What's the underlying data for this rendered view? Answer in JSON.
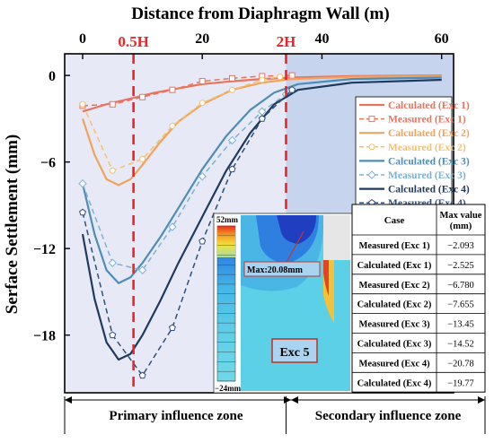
{
  "chart_data": {
    "type": "line",
    "xlabel": "Distance from Diaphragm Wall (m)",
    "ylabel": "Serface Settlement (mm)",
    "xlim": [
      -3,
      62
    ],
    "ylim": [
      -22,
      1.5
    ],
    "xticks": [
      0,
      20,
      40,
      60
    ],
    "yticks": [
      0,
      -6,
      -12,
      -18
    ],
    "grid": false,
    "legend_position": "top-right",
    "markers": [
      {
        "label": "0.5H",
        "x": 8.5,
        "color": "#e8262a"
      },
      {
        "label": "2H",
        "x": 34,
        "color": "#e8262a"
      }
    ],
    "shaded_region": {
      "from_x": 34,
      "to_x": 62,
      "color": "#c6d4ee"
    },
    "zones": {
      "primary": "Primary influence zone",
      "secondary": "Secondary influence zone"
    },
    "series": [
      {
        "name": "Calculated (Exc 1)",
        "color": "#e8735f",
        "style": "solid",
        "marker": "none",
        "points": [
          [
            0,
            -2.5
          ],
          [
            4,
            -2.0
          ],
          [
            8,
            -1.6
          ],
          [
            12,
            -1.2
          ],
          [
            16,
            -0.9
          ],
          [
            20,
            -0.6
          ],
          [
            25,
            -0.4
          ],
          [
            30,
            -0.25
          ],
          [
            35,
            -0.15
          ],
          [
            45,
            -0.05
          ],
          [
            60,
            0
          ]
        ]
      },
      {
        "name": "Measured (Exc 1)",
        "color": "#e8735f",
        "style": "dashed",
        "marker": "square",
        "points": [
          [
            0,
            -2.1
          ],
          [
            5,
            -2.0
          ],
          [
            10,
            -1.5
          ],
          [
            15,
            -1.0
          ],
          [
            20,
            -0.4
          ],
          [
            25,
            -0.2
          ],
          [
            30,
            -0.05
          ],
          [
            35,
            0
          ]
        ]
      },
      {
        "name": "Calculated (Exc 2)",
        "color": "#f2a25c",
        "style": "solid",
        "marker": "none",
        "points": [
          [
            0,
            -3.0
          ],
          [
            2,
            -5.5
          ],
          [
            4,
            -7.2
          ],
          [
            6,
            -7.6
          ],
          [
            8,
            -7.2
          ],
          [
            10,
            -6.2
          ],
          [
            13,
            -4.6
          ],
          [
            16,
            -3.2
          ],
          [
            20,
            -2.0
          ],
          [
            25,
            -1.0
          ],
          [
            30,
            -0.5
          ],
          [
            35,
            -0.25
          ],
          [
            45,
            -0.1
          ],
          [
            60,
            -0.05
          ]
        ]
      },
      {
        "name": "Measured (Exc 2)",
        "color": "#f5c16e",
        "style": "dashed",
        "marker": "circle",
        "points": [
          [
            0,
            -2.0
          ],
          [
            5,
            -6.6
          ],
          [
            10,
            -5.8
          ],
          [
            15,
            -3.5
          ],
          [
            20,
            -1.9
          ],
          [
            25,
            -1.0
          ],
          [
            30,
            -0.3
          ],
          [
            33,
            -0.1
          ]
        ]
      },
      {
        "name": "Calculated (Exc 3)",
        "color": "#4f8db5",
        "style": "solid",
        "marker": "none",
        "points": [
          [
            0,
            -7.5
          ],
          [
            2,
            -11.0
          ],
          [
            4,
            -13.5
          ],
          [
            6,
            -14.4
          ],
          [
            8,
            -14.0
          ],
          [
            10,
            -13.0
          ],
          [
            13,
            -11.2
          ],
          [
            16,
            -9.2
          ],
          [
            20,
            -6.5
          ],
          [
            24,
            -4.2
          ],
          [
            28,
            -2.4
          ],
          [
            32,
            -1.2
          ],
          [
            36,
            -0.6
          ],
          [
            45,
            -0.25
          ],
          [
            60,
            -0.15
          ]
        ]
      },
      {
        "name": "Measured (Exc 3)",
        "color": "#7cb2d4",
        "style": "dashed",
        "marker": "diamond",
        "points": [
          [
            0,
            -7.5
          ],
          [
            5,
            -13.0
          ],
          [
            10,
            -13.5
          ],
          [
            15,
            -10.5
          ],
          [
            20,
            -7.0
          ],
          [
            25,
            -4.5
          ],
          [
            30,
            -2.5
          ],
          [
            34,
            -1.3
          ]
        ]
      },
      {
        "name": "Calculated (Exc 4)",
        "color": "#1f3a5f",
        "style": "solid",
        "marker": "none",
        "points": [
          [
            0,
            -11.0
          ],
          [
            2,
            -15.5
          ],
          [
            4,
            -18.5
          ],
          [
            6,
            -19.7
          ],
          [
            8,
            -19.3
          ],
          [
            10,
            -18.0
          ],
          [
            13,
            -15.6
          ],
          [
            16,
            -13.0
          ],
          [
            20,
            -9.8
          ],
          [
            24,
            -6.6
          ],
          [
            28,
            -4.0
          ],
          [
            32,
            -2.0
          ],
          [
            36,
            -1.0
          ],
          [
            45,
            -0.5
          ],
          [
            60,
            -0.3
          ]
        ]
      },
      {
        "name": "Measured (Exc 4)",
        "color": "#2c4f7c",
        "style": "dashed",
        "marker": "pentagon",
        "points": [
          [
            0,
            -9.5
          ],
          [
            5,
            -18.0
          ],
          [
            10,
            -20.8
          ],
          [
            15,
            -17.5
          ],
          [
            20,
            -11.5
          ],
          [
            25,
            -6.5
          ],
          [
            30,
            -3.0
          ],
          [
            35,
            -1.0
          ]
        ]
      }
    ],
    "table": {
      "headers": [
        "Case",
        "Max value (mm)"
      ],
      "rows": [
        [
          "Measured (Exc 1)",
          "−2.093"
        ],
        [
          "Calculated (Exc 1)",
          "−2.525"
        ],
        [
          "Measured (Exc 2)",
          "−6.780"
        ],
        [
          "Calculated (Exc 2)",
          "−7.655"
        ],
        [
          "Measured (Exc 3)",
          "−13.45"
        ],
        [
          "Calculated (Exc 3)",
          "−14.52"
        ],
        [
          "Measured (Exc 4)",
          "−20.78"
        ],
        [
          "Calculated (Exc 4)",
          "−19.77"
        ]
      ]
    },
    "contour_inset": {
      "scale_top": "52mm",
      "scale_bottom": "−24mm",
      "max_label": "Max:20.08mm",
      "stage_label": "Exc 5"
    }
  }
}
